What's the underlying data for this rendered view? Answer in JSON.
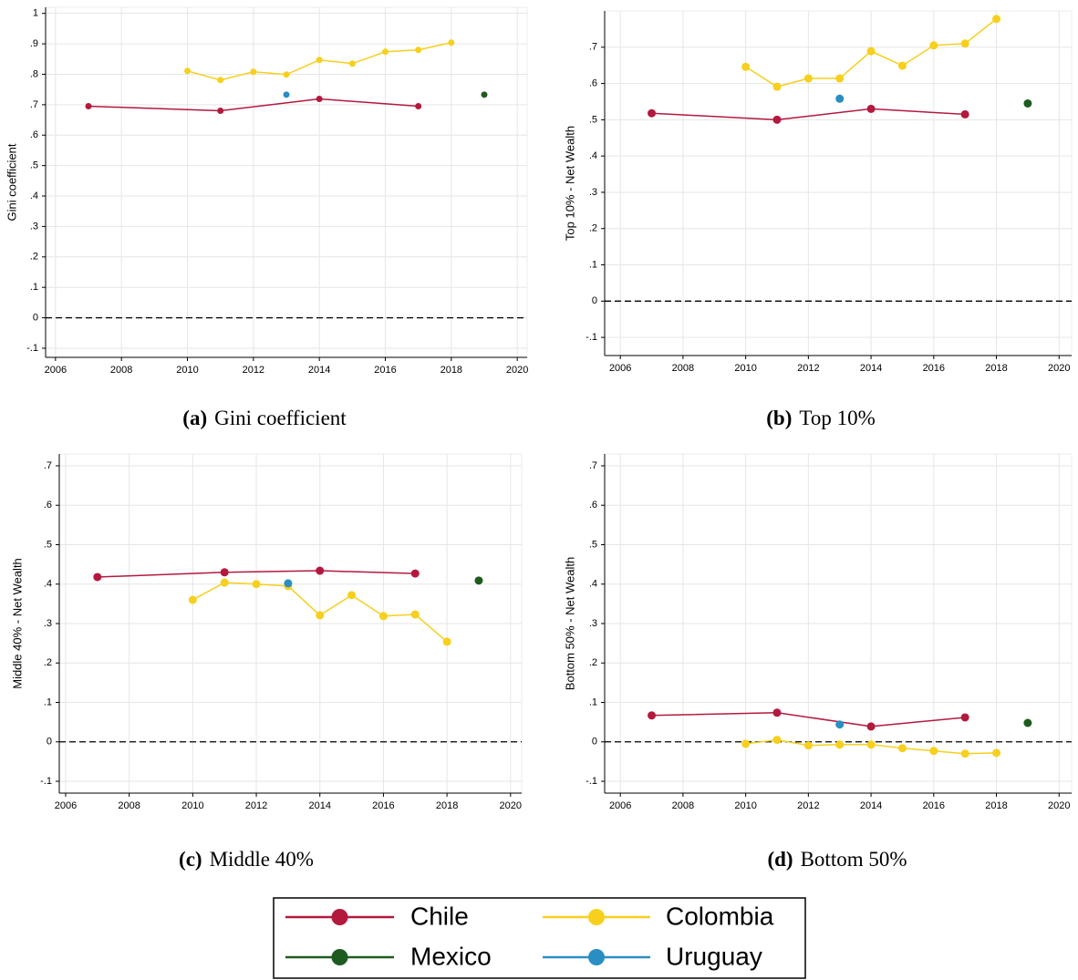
{
  "chart_data": [
    {
      "type": "line",
      "caption_label": "(a)",
      "caption": "Gini coefficient",
      "ylabel": "Gini coefficient",
      "xlim": [
        2005.7,
        2020.3
      ],
      "ylim": [
        -0.13,
        1.02
      ],
      "xticks": [
        2006,
        2008,
        2010,
        2012,
        2014,
        2016,
        2018,
        2020
      ],
      "yticks": [
        {
          "value": -0.1,
          "label": "-.1"
        },
        0,
        {
          "value": 0.1,
          "label": ".1"
        },
        {
          "value": 0.2,
          "label": ".2"
        },
        {
          "value": 0.3,
          "label": ".3"
        },
        {
          "value": 0.4,
          "label": ".4"
        },
        {
          "value": 0.5,
          "label": ".5"
        },
        {
          "value": 0.6,
          "label": ".6"
        },
        {
          "value": 0.7,
          "label": ".7"
        },
        {
          "value": 0.8,
          "label": ".8"
        },
        {
          "value": 0.9,
          "label": ".9"
        },
        1
      ],
      "grid": true,
      "reference_line": 0,
      "series": [
        {
          "name": "Chile",
          "color": "#b3193d",
          "x": [
            2007,
            2011,
            2014,
            2017
          ],
          "values": [
            0.695,
            0.68,
            0.719,
            0.695
          ]
        },
        {
          "name": "Colombia",
          "color": "#f7cf1d",
          "x": [
            2010,
            2011,
            2012,
            2013,
            2014,
            2015,
            2016,
            2017,
            2018
          ],
          "values": [
            0.811,
            0.781,
            0.808,
            0.799,
            0.847,
            0.835,
            0.874,
            0.88,
            0.904
          ]
        },
        {
          "name": "Mexico",
          "color": "#1e5b1f",
          "x": [
            2019
          ],
          "values": [
            0.733
          ]
        },
        {
          "name": "Uruguay",
          "color": "#2a8ec3",
          "x": [
            2013
          ],
          "values": [
            0.733
          ]
        }
      ]
    },
    {
      "type": "line",
      "caption_label": "(b)",
      "caption": "Top 10%",
      "ylabel": "Top 10% - Net Wealth",
      "xlim": [
        2005.5,
        2020.4
      ],
      "ylim": [
        -0.15,
        0.8
      ],
      "xticks": [
        2006,
        2008,
        2010,
        2012,
        2014,
        2016,
        2018,
        2020
      ],
      "yticks": [
        {
          "value": -0.1,
          "label": "-.1"
        },
        0,
        {
          "value": 0.1,
          "label": ".1"
        },
        {
          "value": 0.2,
          "label": ".2"
        },
        {
          "value": 0.3,
          "label": ".3"
        },
        {
          "value": 0.4,
          "label": ".4"
        },
        {
          "value": 0.5,
          "label": ".5"
        },
        {
          "value": 0.6,
          "label": ".6"
        },
        {
          "value": 0.7,
          "label": ".7"
        }
      ],
      "grid": true,
      "reference_line": 0,
      "series": [
        {
          "name": "Chile",
          "color": "#b3193d",
          "x": [
            2007,
            2011,
            2014,
            2017
          ],
          "values": [
            0.518,
            0.5,
            0.53,
            0.515
          ]
        },
        {
          "name": "Colombia",
          "color": "#f7cf1d",
          "x": [
            2010,
            2011,
            2012,
            2013,
            2014,
            2015,
            2016,
            2017,
            2018
          ],
          "values": [
            0.646,
            0.591,
            0.614,
            0.614,
            0.689,
            0.649,
            0.705,
            0.71,
            0.778
          ]
        },
        {
          "name": "Mexico",
          "color": "#1e5b1f",
          "x": [
            2019
          ],
          "values": [
            0.545
          ]
        },
        {
          "name": "Uruguay",
          "color": "#2a8ec3",
          "x": [
            2013
          ],
          "values": [
            0.558
          ]
        }
      ]
    },
    {
      "type": "line",
      "caption_label": "(c)",
      "caption": "Middle 40%",
      "ylabel": "Middle 40% - Net Wealth",
      "xlim": [
        2005.8,
        2020.35
      ],
      "ylim": [
        -0.13,
        0.73
      ],
      "xticks": [
        2006,
        2008,
        2010,
        2012,
        2014,
        2016,
        2018,
        2020
      ],
      "yticks": [
        {
          "value": -0.1,
          "label": "-.1"
        },
        0,
        {
          "value": 0.1,
          "label": ".1"
        },
        {
          "value": 0.2,
          "label": ".2"
        },
        {
          "value": 0.3,
          "label": ".3"
        },
        {
          "value": 0.4,
          "label": ".4"
        },
        {
          "value": 0.5,
          "label": ".5"
        },
        {
          "value": 0.6,
          "label": ".6"
        },
        {
          "value": 0.7,
          "label": ".7"
        }
      ],
      "grid": true,
      "reference_line": 0,
      "series": [
        {
          "name": "Chile",
          "color": "#b3193d",
          "x": [
            2007,
            2011,
            2014,
            2017
          ],
          "values": [
            0.418,
            0.43,
            0.434,
            0.427
          ]
        },
        {
          "name": "Colombia",
          "color": "#f7cf1d",
          "x": [
            2010,
            2011,
            2012,
            2013,
            2014,
            2015,
            2016,
            2017,
            2018
          ],
          "values": [
            0.36,
            0.404,
            0.4,
            0.395,
            0.321,
            0.372,
            0.319,
            0.323,
            0.254
          ]
        },
        {
          "name": "Mexico",
          "color": "#1e5b1f",
          "x": [
            2019
          ],
          "values": [
            0.409
          ]
        },
        {
          "name": "Uruguay",
          "color": "#2a8ec3",
          "x": [
            2013
          ],
          "values": [
            0.402
          ]
        }
      ]
    },
    {
      "type": "line",
      "caption_label": "(d)",
      "caption": "Bottom 50%",
      "ylabel": "Bottom 50% - Net Wealth",
      "xlim": [
        2005.5,
        2020.4
      ],
      "ylim": [
        -0.13,
        0.73
      ],
      "xticks": [
        2006,
        2008,
        2010,
        2012,
        2014,
        2016,
        2018,
        2020
      ],
      "yticks": [
        {
          "value": -0.1,
          "label": "-.1"
        },
        0,
        {
          "value": 0.1,
          "label": ".1"
        },
        {
          "value": 0.2,
          "label": ".2"
        },
        {
          "value": 0.3,
          "label": ".3"
        },
        {
          "value": 0.4,
          "label": ".4"
        },
        {
          "value": 0.5,
          "label": ".5"
        },
        {
          "value": 0.6,
          "label": ".6"
        },
        {
          "value": 0.7,
          "label": ".7"
        }
      ],
      "grid": true,
      "reference_line": 0,
      "series": [
        {
          "name": "Chile",
          "color": "#b3193d",
          "x": [
            2007,
            2011,
            2014,
            2017
          ],
          "values": [
            0.067,
            0.074,
            0.039,
            0.062
          ]
        },
        {
          "name": "Colombia",
          "color": "#f7cf1d",
          "x": [
            2010,
            2011,
            2012,
            2013,
            2014,
            2015,
            2016,
            2017,
            2018
          ],
          "values": [
            -0.005,
            0.005,
            -0.009,
            -0.007,
            -0.007,
            -0.016,
            -0.023,
            -0.03,
            -0.028
          ]
        },
        {
          "name": "Mexico",
          "color": "#1e5b1f",
          "x": [
            2019
          ],
          "values": [
            0.048
          ]
        },
        {
          "name": "Uruguay",
          "color": "#2a8ec3",
          "x": [
            2013
          ],
          "values": [
            0.044
          ]
        }
      ]
    }
  ]
}
